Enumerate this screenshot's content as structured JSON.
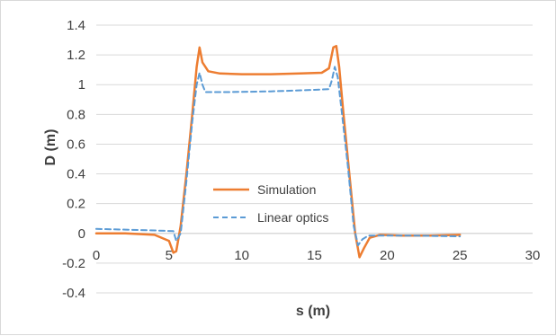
{
  "chart_data": {
    "type": "line",
    "title": "",
    "xlabel": "s (m)",
    "ylabel": "D (m)",
    "xlim": [
      0,
      30
    ],
    "ylim": [
      -0.4,
      1.4
    ],
    "x_ticks": [
      0,
      5,
      10,
      15,
      20,
      25,
      30
    ],
    "y_ticks": [
      -0.4,
      -0.2,
      0,
      0.2,
      0.4,
      0.6,
      0.8,
      1,
      1.2,
      1.4
    ],
    "x_tick_labels": [
      "0",
      "5",
      "10",
      "15",
      "20",
      "25",
      "30"
    ],
    "y_tick_labels": [
      "-0.4",
      "-0.2",
      "0",
      "0.2",
      "0.4",
      "0.6",
      "0.8",
      "1",
      "1.2",
      "1.4"
    ],
    "grid": "horizontal",
    "legend_position": "center",
    "series": [
      {
        "name": "Simulation",
        "color": "#ed7d31",
        "style": "solid",
        "points": [
          [
            0,
            0.0
          ],
          [
            2,
            0.0
          ],
          [
            4,
            -0.01
          ],
          [
            5,
            -0.05
          ],
          [
            5.3,
            -0.13
          ],
          [
            5.5,
            -0.12
          ],
          [
            5.8,
            0.05
          ],
          [
            6.2,
            0.4
          ],
          [
            6.6,
            0.8
          ],
          [
            6.9,
            1.12
          ],
          [
            7.1,
            1.25
          ],
          [
            7.3,
            1.15
          ],
          [
            7.7,
            1.09
          ],
          [
            8.5,
            1.075
          ],
          [
            10,
            1.07
          ],
          [
            12,
            1.07
          ],
          [
            14,
            1.075
          ],
          [
            15.5,
            1.08
          ],
          [
            16.0,
            1.11
          ],
          [
            16.3,
            1.25
          ],
          [
            16.5,
            1.26
          ],
          [
            16.7,
            1.12
          ],
          [
            17.0,
            0.8
          ],
          [
            17.4,
            0.4
          ],
          [
            17.8,
            0.0
          ],
          [
            18.1,
            -0.16
          ],
          [
            18.4,
            -0.1
          ],
          [
            18.8,
            -0.03
          ],
          [
            19.5,
            -0.01
          ],
          [
            21,
            -0.015
          ],
          [
            23,
            -0.015
          ],
          [
            25,
            -0.01
          ]
        ]
      },
      {
        "name": "Linear optics",
        "color": "#5b9bd5",
        "style": "dashed",
        "points": [
          [
            0,
            0.03
          ],
          [
            2,
            0.025
          ],
          [
            4,
            0.02
          ],
          [
            5.3,
            0.015
          ],
          [
            5.5,
            -0.05
          ],
          [
            5.8,
            0.0
          ],
          [
            6.2,
            0.35
          ],
          [
            6.6,
            0.75
          ],
          [
            6.9,
            1.0
          ],
          [
            7.1,
            1.08
          ],
          [
            7.3,
            1.0
          ],
          [
            7.5,
            0.95
          ],
          [
            9,
            0.95
          ],
          [
            12,
            0.955
          ],
          [
            15,
            0.965
          ],
          [
            16.0,
            0.97
          ],
          [
            16.2,
            1.03
          ],
          [
            16.4,
            1.12
          ],
          [
            16.6,
            1.05
          ],
          [
            16.9,
            0.8
          ],
          [
            17.3,
            0.45
          ],
          [
            17.7,
            0.05
          ],
          [
            18.0,
            -0.08
          ],
          [
            18.3,
            -0.04
          ],
          [
            18.7,
            -0.015
          ],
          [
            19.5,
            -0.015
          ],
          [
            22,
            -0.015
          ],
          [
            25,
            -0.02
          ]
        ]
      }
    ]
  }
}
